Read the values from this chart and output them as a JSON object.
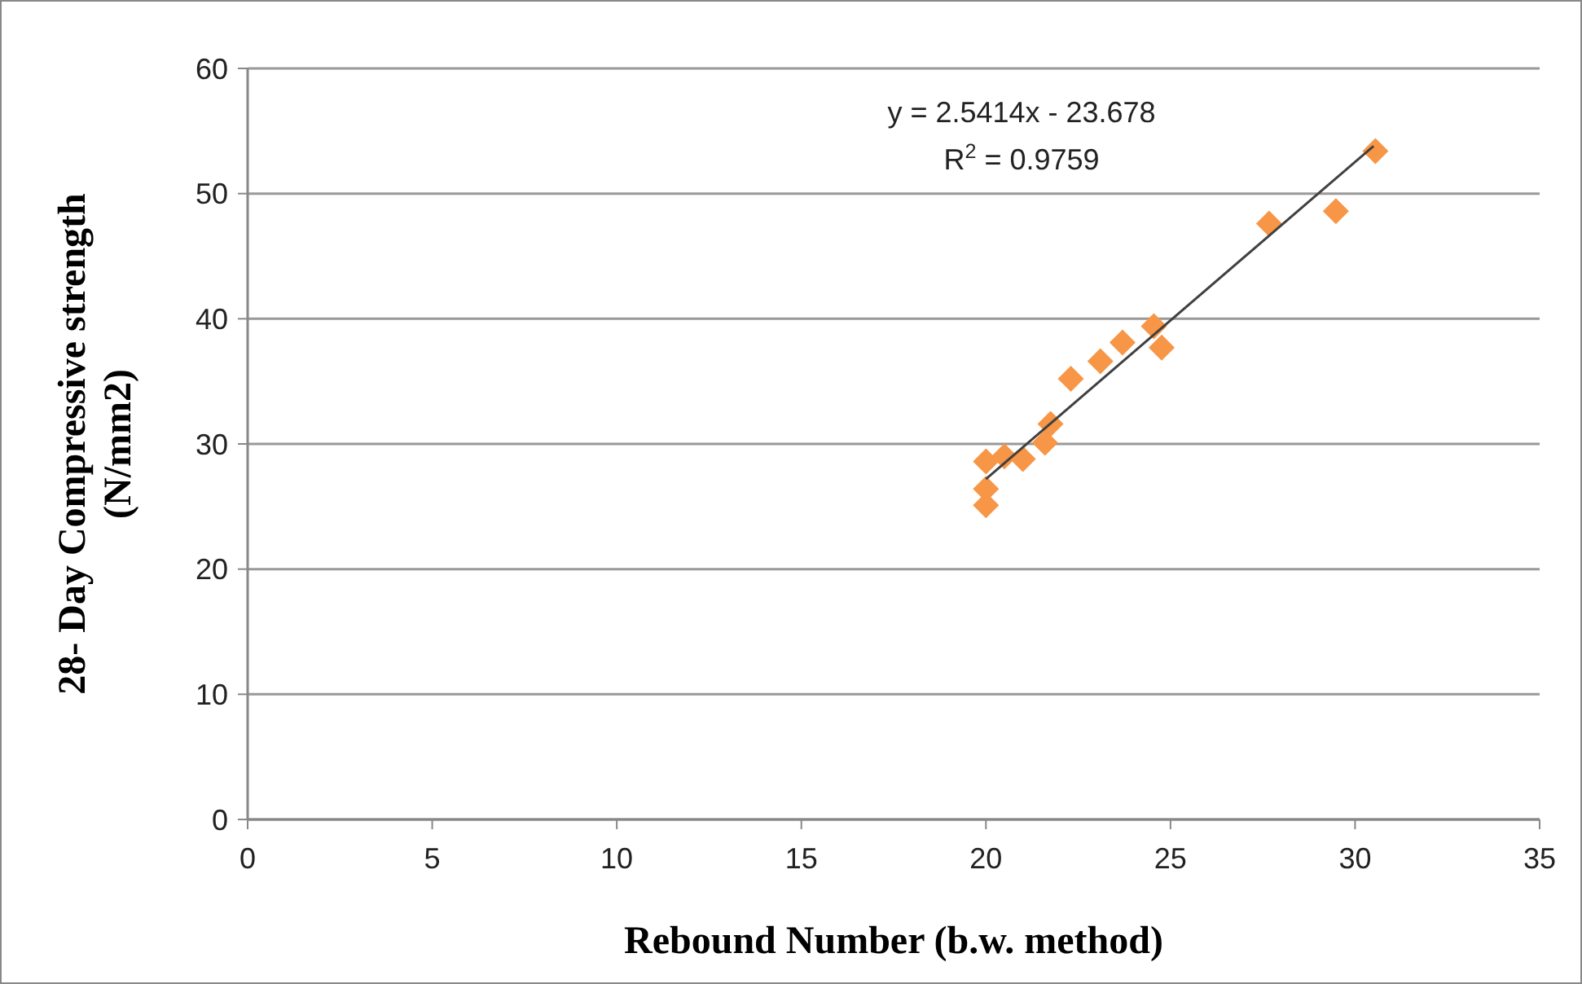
{
  "chart_data": {
    "type": "scatter",
    "xlabel": "Rebound Number (b.w. method)",
    "ylabel": "28- Day Compressive strength (N/mm2)",
    "xlim": [
      0,
      35
    ],
    "xticks": [
      0,
      5,
      10,
      15,
      20,
      25,
      30,
      35
    ],
    "ylim": [
      0,
      60
    ],
    "yticks": [
      0,
      10,
      20,
      30,
      40,
      50,
      60
    ],
    "grid": "y",
    "marker": "diamond",
    "annotations": [
      "y = 2.5414x - 23.678",
      "R$^{2}$ = 0.9759"
    ],
    "series": [
      {
        "color": "#f79646",
        "x": [
          20.0,
          20.0,
          20.0,
          20.5,
          21.0,
          21.6,
          21.75,
          22.3,
          23.1,
          23.7,
          24.55,
          24.76,
          27.67,
          29.48,
          30.55
        ],
        "values": [
          25.1,
          26.4,
          28.6,
          29.0,
          28.8,
          30.1,
          31.6,
          35.2,
          36.6,
          38.1,
          39.4,
          37.7,
          47.6,
          48.6,
          53.4
        ]
      },
      {
        "type": "line",
        "color": "#404040",
        "marker": "none",
        "x": [
          20,
          30.5
        ],
        "values": [
          27.2,
          53.8
        ]
      }
    ]
  }
}
